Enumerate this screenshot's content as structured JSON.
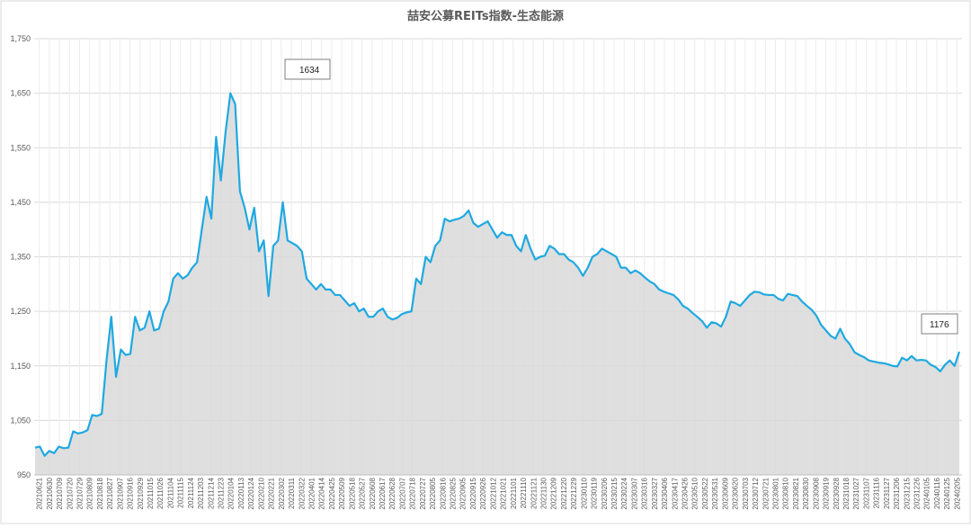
{
  "chart_data": {
    "type": "area",
    "title": "喆安公募REITs指数-生态能源",
    "xlabel": "",
    "ylabel": "",
    "ylim": [
      950,
      1750
    ],
    "yticks": [
      950,
      1050,
      1150,
      1250,
      1350,
      1450,
      1550,
      1650,
      1750
    ],
    "ytick_labels": [
      "950",
      "1,050",
      "1,150",
      "1,250",
      "1,350",
      "1,450",
      "1,550",
      "1,650",
      "1,750"
    ],
    "grid": true,
    "legend": "none",
    "x_tick_labels": [
      "20210621",
      "20210630",
      "20210709",
      "20210720",
      "20210729",
      "20210809",
      "20210818",
      "20210827",
      "20210907",
      "20210916",
      "20210929",
      "20211015",
      "20211026",
      "20211104",
      "20211115",
      "20211124",
      "20211203",
      "20211214",
      "20211223",
      "20220104",
      "20220113",
      "20220124",
      "20220210",
      "20220221",
      "20220302",
      "20220311",
      "20220322",
      "20220401",
      "20220414",
      "20220425",
      "20220509",
      "20220518",
      "20220527",
      "20220608",
      "20220617",
      "20220628",
      "20220707",
      "20220718",
      "20220727",
      "20220805",
      "20220816",
      "20220825",
      "20220905",
      "20220915",
      "20220926",
      "20221012",
      "20221021",
      "20221101",
      "20221110",
      "20221121",
      "20221130",
      "20221209",
      "20221220",
      "20221229",
      "20230110",
      "20230119",
      "20230206",
      "20230215",
      "20230224",
      "20230307",
      "20230316",
      "20230327",
      "20230406",
      "20230417",
      "20230426",
      "20230510",
      "20230522",
      "20230531",
      "20230609",
      "20230620",
      "20230703",
      "20230712",
      "20230721",
      "20230801",
      "20230810",
      "20230821",
      "20230830",
      "20230908",
      "20230919",
      "20230928",
      "20231018",
      "20231027",
      "20231107",
      "20231116",
      "20231127",
      "20231206",
      "20231215",
      "20231226",
      "20240105",
      "20240116",
      "20240125",
      "20240205"
    ],
    "series": [
      {
        "values": [
          1000,
          1002,
          985,
          994,
          990,
          1002,
          999,
          1000,
          1030,
          1026,
          1028,
          1032,
          1060,
          1058,
          1062,
          1160,
          1240,
          1130,
          1180,
          1170,
          1172,
          1240,
          1215,
          1220,
          1250,
          1215,
          1218,
          1250,
          1268,
          1310,
          1320,
          1310,
          1316,
          1330,
          1340,
          1400,
          1460,
          1420,
          1570,
          1490,
          1580,
          1650,
          1630,
          1470,
          1440,
          1400,
          1440,
          1360,
          1380,
          1278,
          1370,
          1380,
          1450,
          1380,
          1375,
          1370,
          1360,
          1310,
          1300,
          1290,
          1300,
          1290,
          1290,
          1280,
          1280,
          1270,
          1260,
          1265,
          1250,
          1255,
          1240,
          1240,
          1250,
          1255,
          1240,
          1235,
          1238,
          1245,
          1248,
          1250,
          1310,
          1300,
          1350,
          1340,
          1370,
          1380,
          1420,
          1415,
          1418,
          1420,
          1425,
          1435,
          1412,
          1405,
          1410,
          1415,
          1400,
          1385,
          1395,
          1390,
          1390,
          1370,
          1360,
          1390,
          1365,
          1345,
          1350,
          1352,
          1370,
          1365,
          1355,
          1355,
          1345,
          1340,
          1330,
          1315,
          1330,
          1350,
          1355,
          1365,
          1360,
          1355,
          1350,
          1330,
          1330,
          1320,
          1325,
          1320,
          1312,
          1305,
          1300,
          1290,
          1286,
          1283,
          1280,
          1272,
          1260,
          1255,
          1247,
          1240,
          1232,
          1220,
          1230,
          1228,
          1222,
          1240,
          1268,
          1265,
          1260,
          1270,
          1280,
          1286,
          1285,
          1281,
          1280,
          1280,
          1273,
          1270,
          1282,
          1280,
          1278,
          1268,
          1260,
          1253,
          1242,
          1225,
          1215,
          1205,
          1200,
          1218,
          1200,
          1190,
          1175,
          1170,
          1166,
          1160,
          1158,
          1156,
          1155,
          1153,
          1150,
          1149,
          1165,
          1160,
          1168,
          1160,
          1161,
          1160,
          1152,
          1148,
          1140,
          1152,
          1160,
          1150,
          1176
        ]
      }
    ],
    "annotations": [
      {
        "text": "1634"
      },
      {
        "text": "1176"
      }
    ],
    "colors": {
      "line": "#1FA9E1",
      "area": "#D9D9D9",
      "grid": "#D9D9D9",
      "axis_text": "#595959"
    }
  }
}
